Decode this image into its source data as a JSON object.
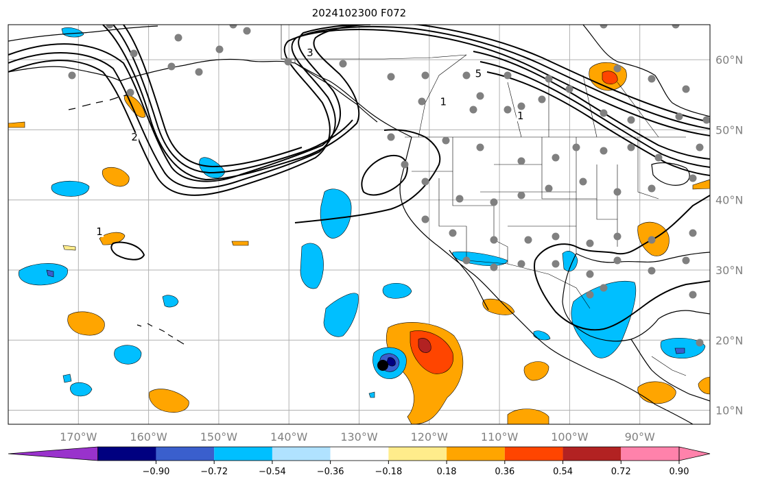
{
  "title": "2024102300 F072",
  "map": {
    "lon_range": [
      -180,
      -80
    ],
    "lat_range": [
      8,
      65
    ],
    "grid": true,
    "lat_labels": [
      {
        "lat": 10,
        "label": "10°N"
      },
      {
        "lat": 20,
        "label": "20°N"
      },
      {
        "lat": 30,
        "label": "30°N"
      },
      {
        "lat": 40,
        "label": "40°N"
      },
      {
        "lat": 50,
        "label": "50°N"
      },
      {
        "lat": 60,
        "label": "60°N"
      }
    ],
    "lon_labels": [
      {
        "lon": -170,
        "label": "170°W"
      },
      {
        "lon": -160,
        "label": "160°W"
      },
      {
        "lon": -150,
        "label": "150°W"
      },
      {
        "lon": -140,
        "label": "140°W"
      },
      {
        "lon": -130,
        "label": "130°W"
      },
      {
        "lon": -120,
        "label": "120°W"
      },
      {
        "lon": -110,
        "label": "110°W"
      },
      {
        "lon": -100,
        "label": "100°W"
      },
      {
        "lon": -90,
        "label": "90°W"
      }
    ],
    "contour_labels": [
      {
        "lon": -162,
        "lat": 48.5,
        "text": "2"
      },
      {
        "lon": -137,
        "lat": 60.5,
        "text": "3"
      },
      {
        "lon": -113,
        "lat": 57.5,
        "text": "5"
      },
      {
        "lon": -118,
        "lat": 53.5,
        "text": "1"
      },
      {
        "lon": -107,
        "lat": 51.5,
        "text": "1"
      },
      {
        "lon": -167,
        "lat": 35,
        "text": "1"
      }
    ]
  },
  "colorbar": {
    "levels": [
      "−0.90",
      "−0.72",
      "−0.54",
      "−0.36",
      "−0.18",
      "0.18",
      "0.36",
      "0.54",
      "0.72",
      "0.90"
    ],
    "colors": [
      "#9932cc",
      "#000080",
      "#3a5fcd",
      "#00bfff",
      "#b0e2ff",
      "#ffffff",
      "#ffec8b",
      "#ffa500",
      "#ff4500",
      "#b22222",
      "#ff82ab"
    ]
  },
  "colors": {
    "stations": "#808080",
    "grid": "#b0b0b0",
    "coastline": "#000000",
    "tropical_center": "#000000"
  }
}
